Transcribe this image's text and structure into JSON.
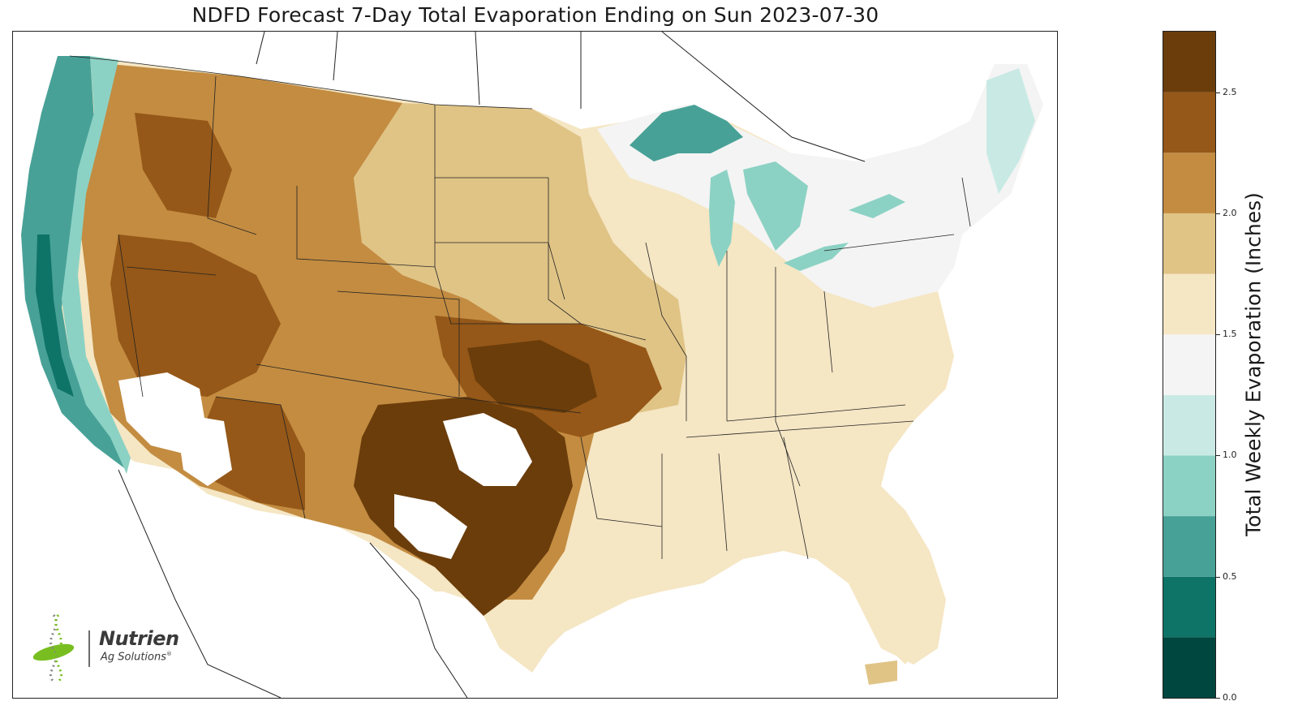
{
  "title": "NDFD Forecast 7-Day Total Evaporation Ending on Sun 2023-07-30",
  "colorbar": {
    "label": "Total Weekly Evaporation (Inches)",
    "min": 0.0,
    "max": 2.75,
    "ticks": [
      "0.0",
      "0.5",
      "1.0",
      "1.5",
      "2.0",
      "2.5"
    ],
    "tick_values": [
      0.0,
      0.5,
      1.0,
      1.5,
      2.0,
      2.5
    ],
    "bin_edges": [
      0.0,
      0.25,
      0.5,
      0.75,
      1.0,
      1.25,
      1.5,
      1.75,
      2.0,
      2.25,
      2.5,
      2.75
    ],
    "colors": [
      "#00473f",
      "#0f7468",
      "#48a197",
      "#8cd2c4",
      "#c9eae4",
      "#f4f4f4",
      "#f5e6c4",
      "#e0c486",
      "#c38c41",
      "#955818",
      "#6b3d0b"
    ]
  },
  "logo": {
    "name": "Nutrien",
    "sub": "Ag Solutions",
    "mark": "®",
    "colors": {
      "leaf": "#78be20",
      "text": "#3a3a3a"
    }
  },
  "regions": {
    "pacific_coast": "#48a197",
    "northwest_inland": "#c38c41",
    "great_basin": "#955818",
    "southern_plains_core": "#6b3d0b",
    "northern_plains": "#e0c486",
    "midwest": "#f5e6c4",
    "great_lakes_water": "#8cd2c4",
    "northeast": "#f4f4f4",
    "southeast": "#f5e6c4",
    "missing_data": "#ffffff"
  }
}
